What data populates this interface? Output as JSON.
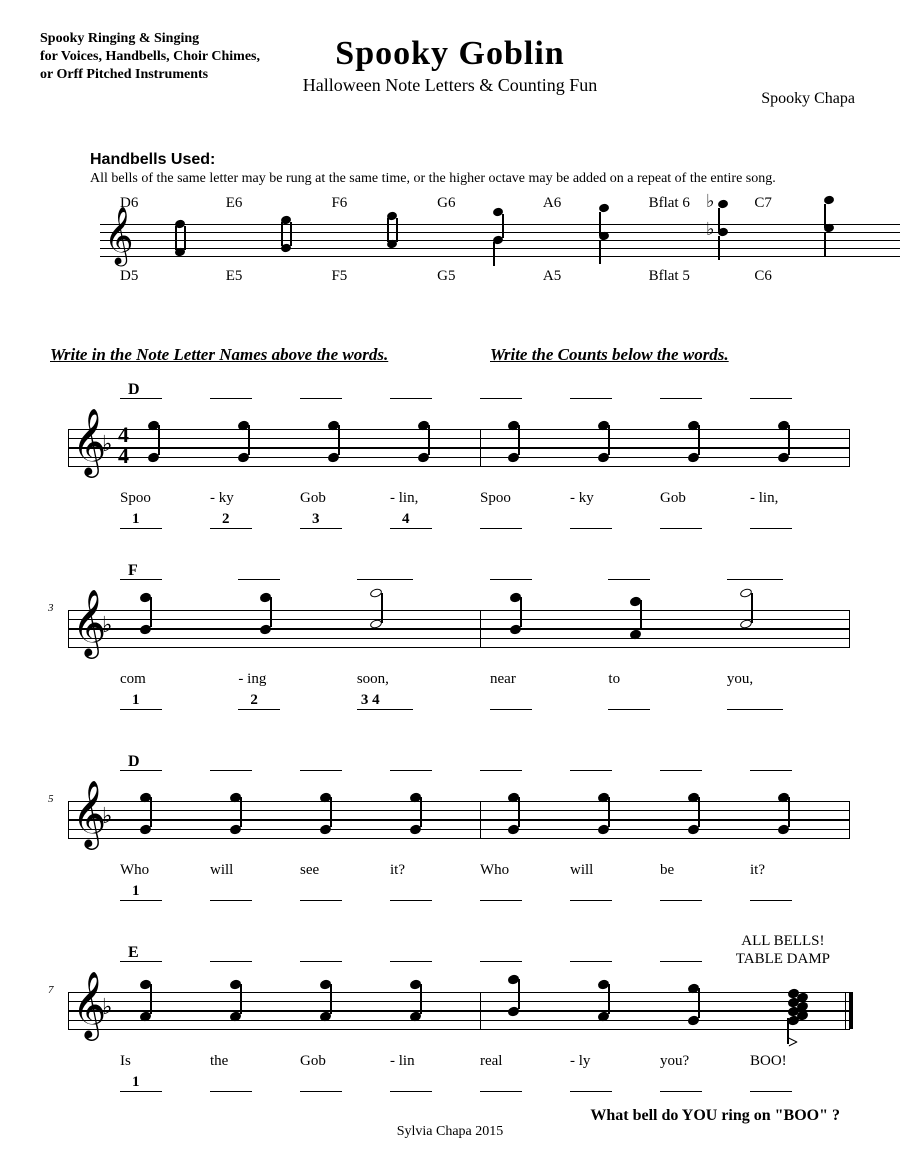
{
  "header": {
    "left_lines": [
      "Spooky Ringing & Singing",
      "for Voices, Handbells, Choir Chimes,",
      "or Orff Pitched Instruments"
    ],
    "title": "Spooky Goblin",
    "subtitle": "Halloween Note Letters & Counting Fun",
    "composer": "Spooky Chapa"
  },
  "handbells": {
    "title": "Handbells Used:",
    "note": "All bells of the same letter may be rung at the same time, or the higher octave may be added on a repeat of the entire song.",
    "top_labels": [
      "D6",
      "E6",
      "F6",
      "G6",
      "A6",
      "Bflat 6",
      "C7"
    ],
    "bottom_labels": [
      "D5",
      "E5",
      "F5",
      "G5",
      "A5",
      "Bflat 5",
      "C6"
    ]
  },
  "instructions": {
    "left": "Write in the Note Letter Names above the words.",
    "right": "Write the Counts below the words."
  },
  "systems": [
    {
      "measure_start": null,
      "has_timesig": true,
      "letter_hints": [
        "D",
        "",
        "",
        "",
        "",
        "",
        "",
        ""
      ],
      "note_type": "quarter",
      "lyrics": [
        "Spoo",
        "-   ky",
        "Gob",
        "-   lin,",
        "Spoo",
        "-   ky",
        "Gob",
        "-   lin,"
      ],
      "counts": [
        "1",
        "2",
        "3",
        "4",
        "",
        "",
        "",
        ""
      ]
    },
    {
      "measure_start": 3,
      "has_timesig": false,
      "letter_hints": [
        "F",
        "",
        "",
        "",
        "",
        ""
      ],
      "note_type": "mixed",
      "lyrics": [
        "com",
        "-    ing",
        "soon,",
        "near",
        "to",
        "you,"
      ],
      "lyric_widths": [
        "q",
        "q",
        "h",
        "q",
        "q",
        "h"
      ],
      "counts": [
        "1",
        "2",
        "3      4",
        "",
        "",
        ""
      ]
    },
    {
      "measure_start": 5,
      "has_timesig": false,
      "letter_hints": [
        "D",
        "",
        "",
        "",
        "",
        "",
        "",
        ""
      ],
      "note_type": "quarter",
      "lyrics": [
        "Who",
        "will",
        "see",
        "it?",
        "Who",
        "will",
        "be",
        "it?"
      ],
      "counts": [
        "1",
        "",
        "",
        "",
        "",
        "",
        "",
        ""
      ]
    },
    {
      "measure_start": 7,
      "has_timesig": false,
      "letter_hints": [
        "E",
        "",
        "",
        "",
        "",
        "",
        "",
        ""
      ],
      "note_type": "quarter",
      "lyrics": [
        "Is",
        "the",
        "Gob",
        "-   lin",
        "real",
        "-    ly",
        "you?",
        "BOO!"
      ],
      "counts": [
        "1",
        "",
        "",
        "",
        "",
        "",
        "",
        ""
      ],
      "all_bells": "ALL BELLS!\nTABLE DAMP",
      "final": true
    }
  ],
  "question": "What bell do YOU ring on \"BOO\" ?",
  "footer": "Sylvia Chapa 2015",
  "colors": {
    "text": "#000000",
    "bg": "#ffffff"
  }
}
